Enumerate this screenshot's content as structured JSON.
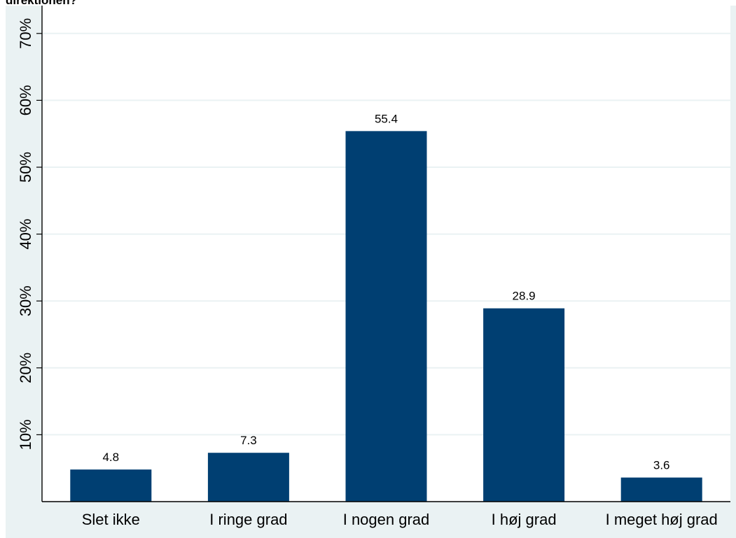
{
  "chart_data": {
    "type": "bar",
    "title": "direktionen?",
    "xlabel": "",
    "ylabel": "",
    "categories": [
      "Slet ikke",
      "I ringe grad",
      "I nogen grad",
      "I høj grad",
      "I meget høj grad"
    ],
    "values": [
      4.8,
      7.3,
      55.4,
      28.9,
      3.6
    ],
    "value_labels": [
      "4.8",
      "7.3",
      "55.4",
      "28.9",
      "3.6"
    ],
    "y_ticks": [
      10,
      20,
      30,
      40,
      50,
      60,
      70
    ],
    "y_tick_labels": [
      "10%",
      "20%",
      "30%",
      "40%",
      "50%",
      "60%",
      "70%"
    ],
    "ylim": [
      0,
      70
    ],
    "grid": true,
    "bar_color": "#003f72",
    "plot_background": "#ffffff",
    "frame_background": "#eaf2f3",
    "grid_color": "#eaf2f3"
  }
}
